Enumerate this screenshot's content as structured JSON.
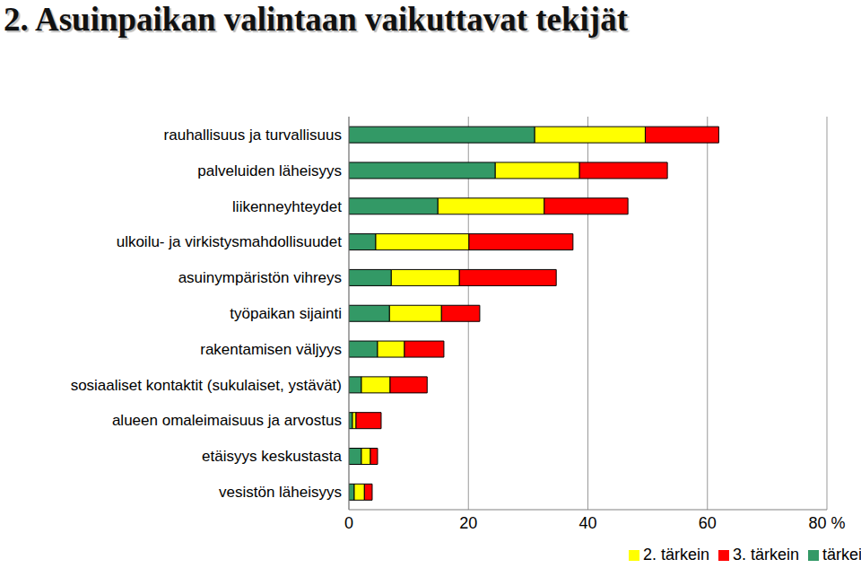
{
  "chart_data": {
    "type": "bar",
    "title": "2. Asuinpaikan valintaan vaikuttavat tekijät",
    "orientation": "horizontal",
    "stacked": true,
    "grid": true,
    "legend": "bottom",
    "categories": [
      "rauhallisuus ja turvallisuus",
      "palveluiden läheisyys",
      "liikenneyhteydet",
      "ulkoilu- ja virkistysmahdollisuudet",
      "asuinympäristön vihreys",
      "työpaikan sijainti",
      "rakentamisen väljyys",
      "sosiaaliset kontaktit (sukulaiset, ystävät)",
      "alueen omaleimaisuus ja arvostus",
      "etäisyys keskustasta",
      "vesistön läheisyys"
    ],
    "series": [
      {
        "name": "tärkein",
        "color": "#339966",
        "values": [
          31.1,
          24.5,
          14.9,
          4.5,
          7.1,
          6.8,
          4.8,
          2.1,
          0.6,
          2.1,
          0.9
        ]
      },
      {
        "name": "2. tärkein",
        "color": "#ffff00",
        "values": [
          18.5,
          14.1,
          17.8,
          15.6,
          11.4,
          8.7,
          4.5,
          4.8,
          0.6,
          1.5,
          1.7
        ]
      },
      {
        "name": "3. tärkein",
        "color": "#ff0000",
        "values": [
          12.3,
          14.7,
          14.0,
          17.4,
          16.2,
          6.4,
          6.6,
          6.2,
          4.2,
          1.2,
          1.3
        ]
      }
    ],
    "xlim": [
      0,
      80
    ],
    "xticks": [
      0,
      20,
      40,
      60,
      {
        "value": 80,
        "label": "80 %"
      }
    ]
  }
}
